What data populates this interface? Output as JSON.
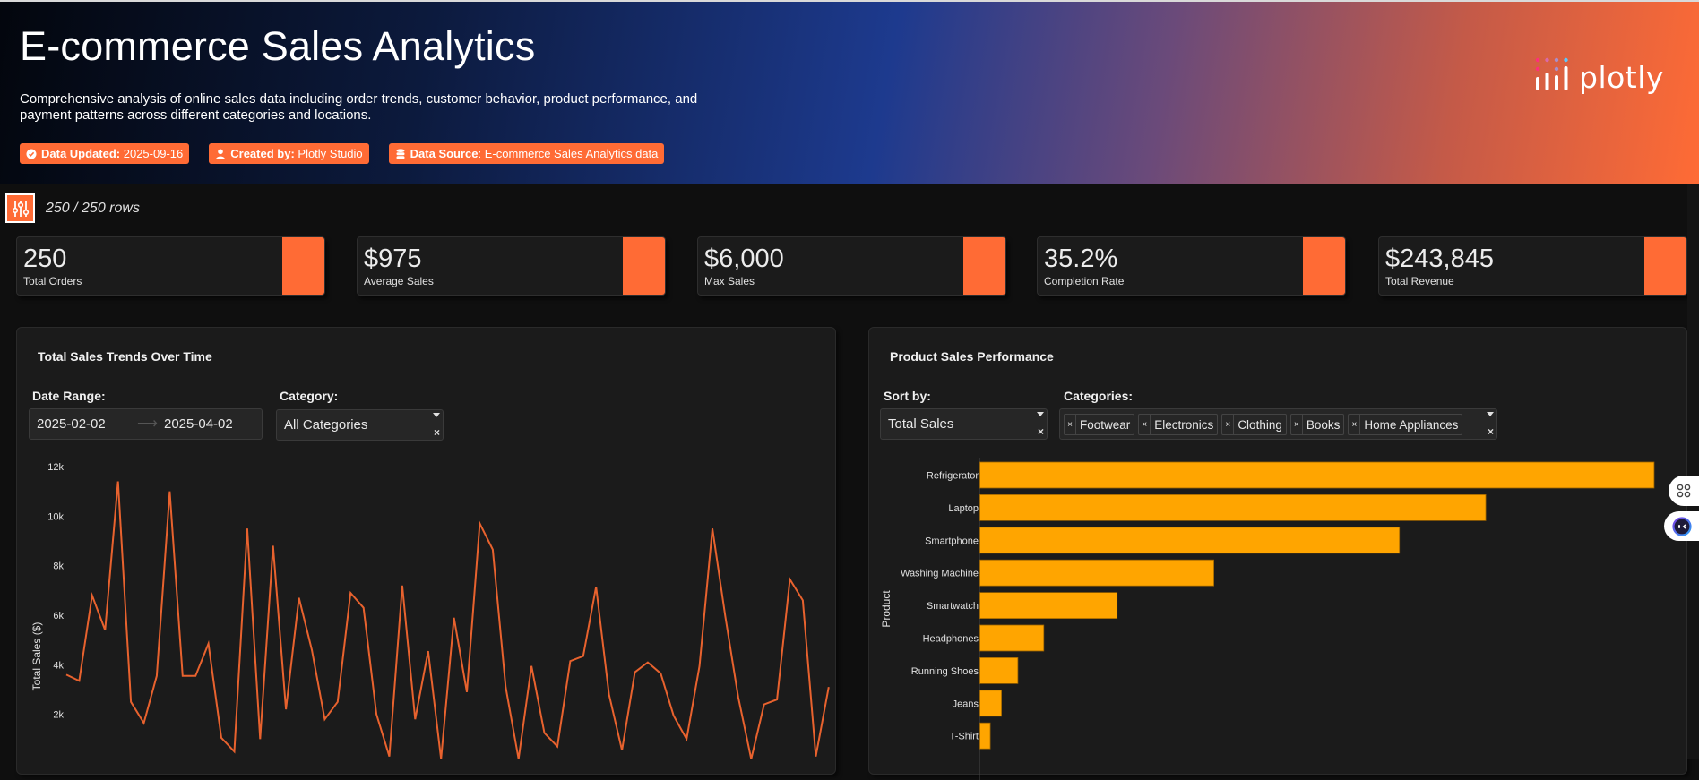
{
  "header": {
    "title": "E-commerce Sales Analytics",
    "description": "Comprehensive analysis of online sales data including order trends, customer behavior, product performance, and payment patterns across different categories and locations.",
    "badges": [
      {
        "icon": "check-circle-icon",
        "label": "Data Updated:",
        "value": " 2025-09-16"
      },
      {
        "icon": "user-icon",
        "label": "Created by:",
        "value": " Plotly Studio"
      },
      {
        "icon": "database-icon",
        "label": "Data Source",
        "value": ": E-commerce Sales Analytics data"
      }
    ],
    "logo_text": "plotly"
  },
  "filter": {
    "icon": "sliders-icon",
    "rows_text": "250 / 250 rows"
  },
  "kpis": [
    {
      "value": "250",
      "label": "Total Orders"
    },
    {
      "value": "$975",
      "label": "Average Sales"
    },
    {
      "value": "$6,000",
      "label": "Max Sales"
    },
    {
      "value": "35.2%",
      "label": "Completion Rate"
    },
    {
      "value": "$243,845",
      "label": "Total Revenue"
    }
  ],
  "colors": {
    "accent": "#ff6b35",
    "line": "#e8622e",
    "bar": "#ffa500",
    "card_bg": "#1b1b1b",
    "page_bg": "#0f0f0f"
  },
  "sales_trend": {
    "title": "Total Sales Trends Over Time",
    "date_range_label": "Date Range:",
    "date_start": "2025-02-02",
    "date_end": "2025-04-02",
    "category_label": "Category:",
    "category_value": "All Categories"
  },
  "product_perf": {
    "title": "Product Sales Performance",
    "sort_label": "Sort by:",
    "sort_value": "Total Sales",
    "categories_label": "Categories:",
    "categories": [
      "Footwear",
      "Electronics",
      "Clothing",
      "Books",
      "Home Appliances"
    ]
  },
  "chart_data": [
    {
      "type": "line",
      "title": "Total Sales Trends Over Time",
      "xlabel": "",
      "ylabel": "Total Sales ($)",
      "ylim": [
        0,
        12000
      ],
      "yticks": [
        2000,
        4000,
        6000,
        8000,
        10000,
        12000
      ],
      "ytick_labels": [
        "2k",
        "4k",
        "6k",
        "8k",
        "10k",
        "12k"
      ],
      "grid": false,
      "series": [
        {
          "name": "Total Sales",
          "values": [
            3600,
            3350,
            6800,
            5400,
            11400,
            2500,
            1650,
            3550,
            11000,
            3550,
            3550,
            4850,
            1050,
            500,
            9500,
            1000,
            8800,
            2200,
            6700,
            4600,
            1800,
            2500,
            6900,
            6300,
            2000,
            300,
            7200,
            1800,
            4550,
            200,
            5900,
            2900,
            9700,
            8650,
            3100,
            200,
            3950,
            1250,
            700,
            4150,
            4350,
            7150,
            2800,
            550,
            3700,
            4100,
            3650,
            1950,
            1000,
            3950,
            9500,
            5950,
            2700,
            200,
            2400,
            2600,
            7450,
            6600,
            300,
            3100
          ]
        }
      ]
    },
    {
      "type": "bar",
      "orientation": "horizontal",
      "title": "Product Sales Performance",
      "xlabel": "",
      "ylabel": "Product",
      "categories": [
        "Refrigerator",
        "Laptop",
        "Smartphone",
        "Washing Machine",
        "Smartwatch",
        "Headphones",
        "Running Shoes",
        "Jeans",
        "T-Shirt"
      ],
      "values": [
        78100,
        58600,
        48600,
        27100,
        15900,
        7400,
        4400,
        2500,
        1200
      ],
      "xlim": [
        0,
        82000
      ],
      "grid": false
    }
  ],
  "side_buttons": [
    {
      "icon": "apps-grid-icon"
    },
    {
      "icon": "assistant-face-icon"
    }
  ]
}
